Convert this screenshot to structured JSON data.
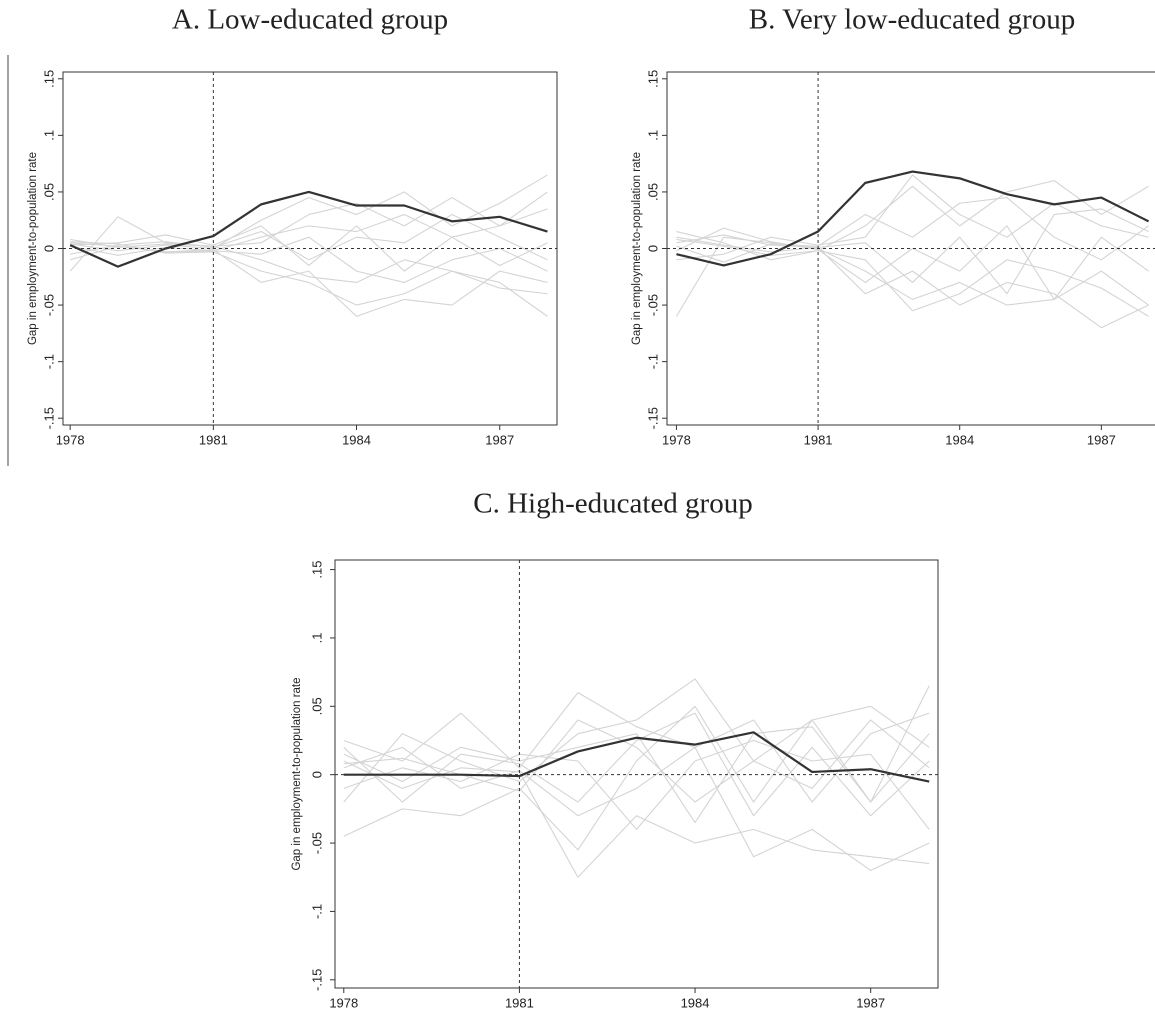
{
  "chart_data": [
    {
      "type": "line",
      "title": "A.   Low-educated group",
      "y_label": "Gap in employment-to-population rate",
      "x": [
        1978,
        1979,
        1980,
        1981,
        1982,
        1983,
        1984,
        1985,
        1986,
        1987,
        1988
      ],
      "xlim": [
        1977.85,
        1988.2
      ],
      "xticks": [
        1978,
        1981,
        1984,
        1987
      ],
      "ylim": [
        -0.156,
        0.156
      ],
      "yticks": [
        {
          "value": -0.15,
          "label": "-.15"
        },
        {
          "value": -0.1,
          "label": "-.1"
        },
        {
          "value": -0.05,
          "label": "-.05"
        },
        0,
        {
          "value": 0.05,
          "label": ".05"
        },
        {
          "value": 0.1,
          "label": ".1"
        },
        {
          "value": 0.15,
          "label": ".15"
        }
      ],
      "reference_x": 1981,
      "reference_y": 0,
      "series": [
        {
          "color": "#d4d4d4",
          "values": [
            0.005,
            0.002,
            -0.003,
            -0.002,
            0.01,
            0.02,
            0.015,
            0.03,
            0.01,
            0.02,
            0.035
          ]
        },
        {
          "color": "#d4d4d4",
          "values": [
            -0.02,
            0.028,
            0.005,
            0.002,
            -0.01,
            -0.025,
            -0.03,
            -0.01,
            -0.02,
            -0.035,
            -0.04
          ]
        },
        {
          "color": "#d4d4d4",
          "values": [
            0.004,
            -0.002,
            0.003,
            0,
            0.025,
            0.045,
            0.03,
            0.05,
            0.02,
            0.04,
            0.065
          ]
        },
        {
          "color": "#d4d4d4",
          "values": [
            0.006,
            0.004,
            -0.004,
            -0.003,
            -0.02,
            -0.03,
            -0.05,
            -0.04,
            -0.02,
            -0.03,
            -0.06
          ]
        },
        {
          "color": "#d4d4d4",
          "values": [
            -0.005,
            0.003,
            0.006,
            0.001,
            0.015,
            -0.01,
            0.01,
            0.005,
            0.03,
            0.01,
            -0.01
          ]
        },
        {
          "color": "#d4d4d4",
          "values": [
            0.002,
            -0.006,
            0.001,
            -0.002,
            -0.005,
            0.01,
            -0.02,
            -0.03,
            -0.01,
            0,
            -0.02
          ]
        },
        {
          "color": "#d4d4d4",
          "values": [
            0.008,
            0.001,
            0.004,
            0.002,
            0.005,
            0.03,
            0.04,
            0.02,
            0.045,
            0.02,
            0.05
          ]
        },
        {
          "color": "#d4d4d4",
          "values": [
            -0.01,
            0.002,
            -0.003,
            -0.001,
            -0.03,
            -0.02,
            -0.06,
            -0.045,
            -0.05,
            -0.02,
            -0.03
          ]
        },
        {
          "color": "#d4d4d4",
          "values": [
            0.003,
            0.005,
            0.012,
            0.003,
            0.02,
            -0.015,
            0.02,
            -0.02,
            0.01,
            -0.015,
            0.005
          ]
        },
        {
          "color": "#333333",
          "values": [
            0.003,
            -0.016,
            0,
            0.011,
            0.039,
            0.05,
            0.038,
            0.038,
            0.024,
            0.028,
            0.015
          ]
        }
      ]
    },
    {
      "type": "line",
      "title": "B. Very low-educated group",
      "y_label": "Gap in employment-to-population rate",
      "x": [
        1978,
        1979,
        1980,
        1981,
        1982,
        1983,
        1984,
        1985,
        1986,
        1987,
        1988
      ],
      "xlim": [
        1977.8,
        1988.2
      ],
      "xticks": [
        1978,
        1981,
        1984,
        1987
      ],
      "ylim": [
        -0.156,
        0.156
      ],
      "yticks": [
        {
          "value": -0.15,
          "label": "-.15"
        },
        {
          "value": -0.1,
          "label": "-.1"
        },
        {
          "value": -0.05,
          "label": "-.05"
        },
        0,
        {
          "value": 0.05,
          "label": ".05"
        },
        {
          "value": 0.1,
          "label": ".1"
        },
        {
          "value": 0.15,
          "label": ".15"
        }
      ],
      "reference_x": 1981,
      "reference_y": 0,
      "series": [
        {
          "color": "#d4d4d4",
          "values": [
            -0.06,
            0.01,
            0.005,
            0,
            -0.02,
            -0.045,
            -0.03,
            -0.05,
            -0.045,
            -0.02,
            -0.05
          ]
        },
        {
          "color": "#d4d4d4",
          "values": [
            0.015,
            0.005,
            -0.01,
            -0.002,
            0.02,
            0.055,
            0.02,
            0.05,
            0.06,
            0.03,
            0.055
          ]
        },
        {
          "color": "#d4d4d4",
          "values": [
            0.005,
            0.012,
            0.003,
            0.001,
            -0.04,
            -0.02,
            -0.05,
            -0.03,
            -0.04,
            -0.07,
            -0.05
          ]
        },
        {
          "color": "#d4d4d4",
          "values": [
            -0.01,
            -0.005,
            0.01,
            0.003,
            0.01,
            0.065,
            0.03,
            0.01,
            0.04,
            0.02,
            0.01
          ]
        },
        {
          "color": "#d4d4d4",
          "values": [
            0.008,
            0.002,
            -0.006,
            -0.002,
            -0.01,
            -0.055,
            -0.04,
            -0.01,
            -0.02,
            -0.035,
            -0.06
          ]
        },
        {
          "color": "#d4d4d4",
          "values": [
            0.002,
            -0.012,
            0.004,
            0.002,
            0.03,
            0.01,
            0.04,
            0.045,
            0.01,
            -0.01,
            0.02
          ]
        },
        {
          "color": "#d4d4d4",
          "values": [
            -0.002,
            0.018,
            0.006,
            -0.001,
            -0.03,
            0,
            -0.02,
            0.02,
            -0.045,
            0.01,
            -0.02
          ]
        },
        {
          "color": "#d4d4d4",
          "values": [
            0.01,
            0.003,
            -0.003,
            0.001,
            0.005,
            -0.03,
            0.01,
            -0.04,
            0.03,
            0.035,
            0.015
          ]
        },
        {
          "color": "#333333",
          "values": [
            -0.005,
            -0.015,
            -0.005,
            0.015,
            0.058,
            0.068,
            0.062,
            0.048,
            0.039,
            0.045,
            0.024
          ]
        }
      ]
    },
    {
      "type": "line",
      "title": "C. High-educated group",
      "y_label": "Gap in employment-to-population rate",
      "x": [
        1978,
        1979,
        1980,
        1981,
        1982,
        1983,
        1984,
        1985,
        1986,
        1987,
        1988
      ],
      "xlim": [
        1977.85,
        1988.15
      ],
      "xticks": [
        1978,
        1981,
        1984,
        1987
      ],
      "ylim": [
        -0.156,
        0.157
      ],
      "yticks": [
        {
          "value": -0.15,
          "label": "-.15"
        },
        {
          "value": -0.1,
          "label": "-.1"
        },
        {
          "value": -0.05,
          "label": "-.05"
        },
        0,
        {
          "value": 0.05,
          "label": ".05"
        },
        {
          "value": 0.1,
          "label": ".1"
        },
        {
          "value": 0.15,
          "label": ".15"
        }
      ],
      "reference_x": 1981,
      "reference_y": 0,
      "series": [
        {
          "color": "#d4d4d4",
          "values": [
            -0.045,
            -0.025,
            -0.03,
            -0.01,
            -0.055,
            0.01,
            0.05,
            -0.02,
            0.04,
            -0.02,
            0.065
          ]
        },
        {
          "color": "#d4d4d4",
          "values": [
            0.025,
            0.01,
            0.045,
            0.005,
            0.06,
            0.035,
            0.02,
            0.04,
            -0.02,
            0.03,
            0.045
          ]
        },
        {
          "color": "#d4d4d4",
          "values": [
            0.01,
            -0.01,
            0.005,
            0.002,
            -0.075,
            -0.03,
            -0.05,
            -0.04,
            -0.055,
            -0.06,
            -0.065
          ]
        },
        {
          "color": "#d4d4d4",
          "values": [
            -0.02,
            0.03,
            0.01,
            -0.005,
            0.03,
            0.04,
            0.07,
            0.01,
            0.04,
            0.05,
            0.02
          ]
        },
        {
          "color": "#d4d4d4",
          "values": [
            0.005,
            0.02,
            -0.01,
            0.003,
            -0.03,
            -0.01,
            0.02,
            -0.06,
            -0.04,
            -0.07,
            -0.05
          ]
        },
        {
          "color": "#d4d4d4",
          "values": [
            0.015,
            -0.005,
            0.02,
            0.01,
            0.02,
            0.03,
            -0.035,
            0.03,
            0.035,
            -0.02,
            0.03
          ]
        },
        {
          "color": "#d4d4d4",
          "values": [
            -0.01,
            0.005,
            -0.005,
            0.015,
            0.01,
            -0.04,
            0.01,
            0.025,
            0.01,
            0.015,
            -0.04
          ]
        },
        {
          "color": "#d4d4d4",
          "values": [
            0.008,
            0.012,
            0,
            -0.012,
            0.04,
            0.02,
            -0.02,
            0.01,
            -0.01,
            0.04,
            0.005
          ]
        },
        {
          "color": "#d4d4d4",
          "values": [
            0.02,
            -0.02,
            0.015,
            0.008,
            -0.02,
            0.025,
            0.045,
            -0.03,
            0.02,
            -0.03,
            0.01
          ]
        },
        {
          "color": "#333333",
          "values": [
            0,
            0,
            0,
            -0.001,
            0.017,
            0.027,
            0.022,
            0.031,
            0.002,
            0.004,
            -0.005
          ]
        }
      ]
    }
  ]
}
